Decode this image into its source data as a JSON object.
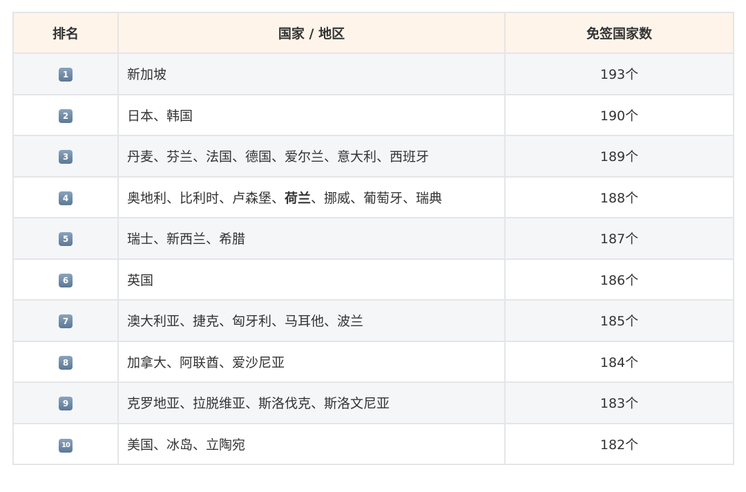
{
  "header": {
    "rank": "排名",
    "country": "国家 / 地区",
    "count": "免签国家数"
  },
  "rows": [
    {
      "rank": "1",
      "pre": "新加坡",
      "bold": "",
      "post": "",
      "count": "193个"
    },
    {
      "rank": "2",
      "pre": "日本、韩国",
      "bold": "",
      "post": "",
      "count": "190个"
    },
    {
      "rank": "3",
      "pre": "丹麦、芬兰、法国、德国、爱尔兰、意大利、西班牙",
      "bold": "",
      "post": "",
      "count": "189个"
    },
    {
      "rank": "4",
      "pre": "奥地利、比利时、卢森堡、",
      "bold": "荷兰",
      "post": "、挪威、葡萄牙、瑞典",
      "count": "188个"
    },
    {
      "rank": "5",
      "pre": "瑞士、新西兰、希腊",
      "bold": "",
      "post": "",
      "count": "187个"
    },
    {
      "rank": "6",
      "pre": "英国",
      "bold": "",
      "post": "",
      "count": "186个"
    },
    {
      "rank": "7",
      "pre": "澳大利亚、捷克、匈牙利、马耳他、波兰",
      "bold": "",
      "post": "",
      "count": "185个"
    },
    {
      "rank": "8",
      "pre": "加拿大、阿联酋、爱沙尼亚",
      "bold": "",
      "post": "",
      "count": "184个"
    },
    {
      "rank": "9",
      "pre": "克罗地亚、拉脱维亚、斯洛伐克、斯洛文尼亚",
      "bold": "",
      "post": "",
      "count": "183个"
    },
    {
      "rank": "10",
      "pre": "美国、冰岛、立陶宛",
      "bold": "",
      "post": "",
      "count": "182个"
    }
  ],
  "colors": {
    "header_bg": "#fff4ea",
    "stripe_bg": "#f5f6f8",
    "keycap": "#6f8cab"
  }
}
